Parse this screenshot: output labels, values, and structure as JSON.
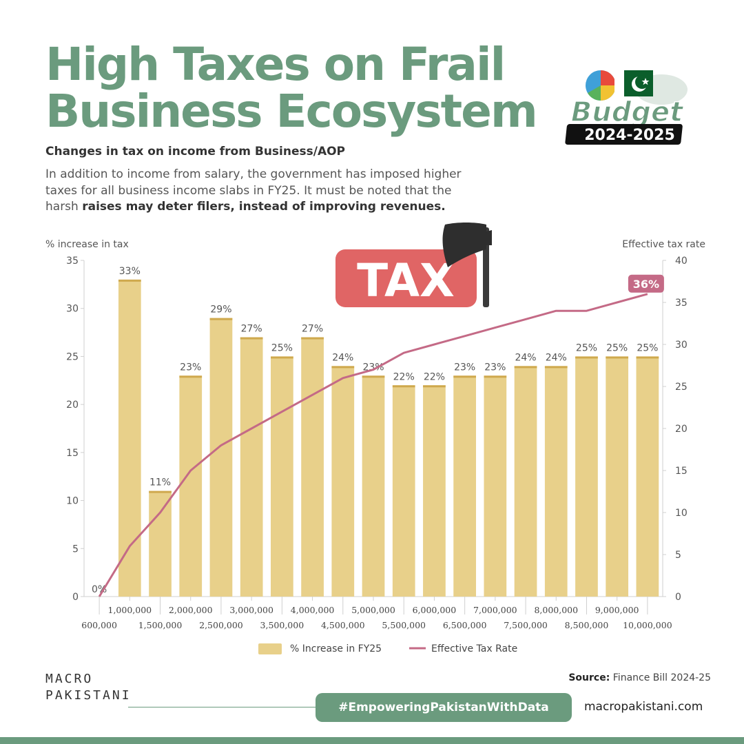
{
  "header": {
    "title": "High Taxes on Frail Business Ecosystem",
    "subtitle": "Changes in tax on income from Business/AOP",
    "description_lead": "In addition to income from salary, the government has imposed higher taxes for all business income slabs in FY25. It must be noted that the harsh ",
    "description_bold": "raises may deter filers, instead of improving revenues."
  },
  "badge": {
    "word": "Budget",
    "years": "2024-2025",
    "tax_sign": "TAX"
  },
  "colors": {
    "brand_green": "#6b9b7e",
    "bar_fill": "#e8d08a",
    "line": "#c46a86",
    "tax_sign": "#e06565"
  },
  "chart_data": {
    "type": "bar",
    "title": "",
    "ylabel": "% increase in tax",
    "y2label": "Effective tax rate",
    "ylim": [
      0,
      35
    ],
    "y2lim": [
      0,
      40
    ],
    "yticks": [
      0,
      5,
      10,
      15,
      20,
      25,
      30,
      35
    ],
    "y2ticks": [
      0,
      5,
      10,
      15,
      20,
      25,
      30,
      35,
      40
    ],
    "categories": [
      "600,000",
      "1,000,000",
      "1,500,000",
      "2,000,000",
      "2,500,000",
      "3,000,000",
      "3,500,000",
      "4,000,000",
      "4,500,000",
      "5,000,000",
      "5,500,000",
      "6,000,000",
      "6,500,000",
      "7,000,000",
      "7,500,000",
      "8,000,000",
      "8,500,000",
      "9,000,000",
      "10,000,000"
    ],
    "bar_labels": [
      "0%",
      "33%",
      "11%",
      "23%",
      "29%",
      "27%",
      "25%",
      "27%",
      "24%",
      "23%",
      "22%",
      "22%",
      "23%",
      "23%",
      "24%",
      "24%",
      "25%",
      "25%",
      "25%"
    ],
    "series": [
      {
        "name": "% Increase in FY25",
        "axis": "left",
        "type": "bar",
        "values": [
          0,
          33,
          11,
          23,
          29,
          27,
          25,
          27,
          24,
          23,
          22,
          22,
          23,
          23,
          24,
          24,
          25,
          25,
          25
        ]
      },
      {
        "name": "Effective Tax Rate",
        "axis": "right",
        "type": "line",
        "values": [
          0,
          6,
          10,
          15,
          18,
          20,
          22,
          24,
          26,
          27,
          29,
          30,
          31,
          32,
          33,
          34,
          34,
          35,
          36
        ]
      }
    ],
    "line_end_label": "36%",
    "legend": "bottom-center"
  },
  "footer": {
    "source_label": "Source:",
    "source_text": "Finance Bill 2024-25",
    "brand_line1": "MACRO",
    "brand_line2": "PAKISTANI",
    "hashtag": "#EmpoweringPakistanWithData",
    "website": "macropakistani.com"
  }
}
